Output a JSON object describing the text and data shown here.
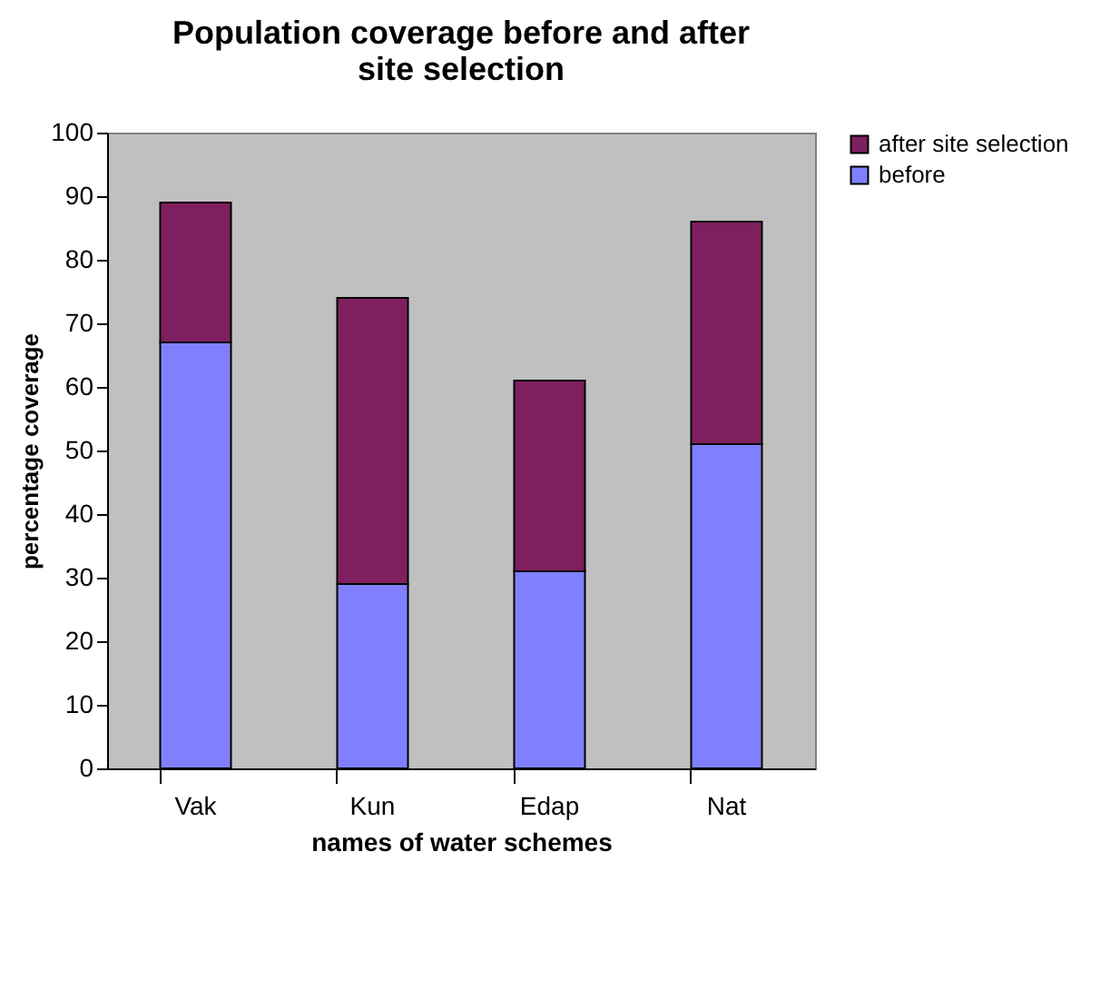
{
  "chart_data": {
    "type": "bar",
    "title": "Population coverage before and after site selection",
    "xlabel": "names of water schemes",
    "ylabel": "percentage coverage",
    "categories": [
      "Vak",
      "Kun",
      "Edap",
      "Nat"
    ],
    "stacked": true,
    "series": [
      {
        "name": "before",
        "color": "#8080ff",
        "values": [
          67,
          29,
          31,
          51
        ]
      },
      {
        "name": "after site selection",
        "color": "#7f1f5f",
        "values": [
          22,
          45,
          30,
          35
        ]
      }
    ],
    "ylim": [
      0,
      100
    ],
    "yticks": [
      0,
      10,
      20,
      30,
      40,
      50,
      60,
      70,
      80,
      90,
      100
    ],
    "grid": false,
    "legend": "right"
  }
}
